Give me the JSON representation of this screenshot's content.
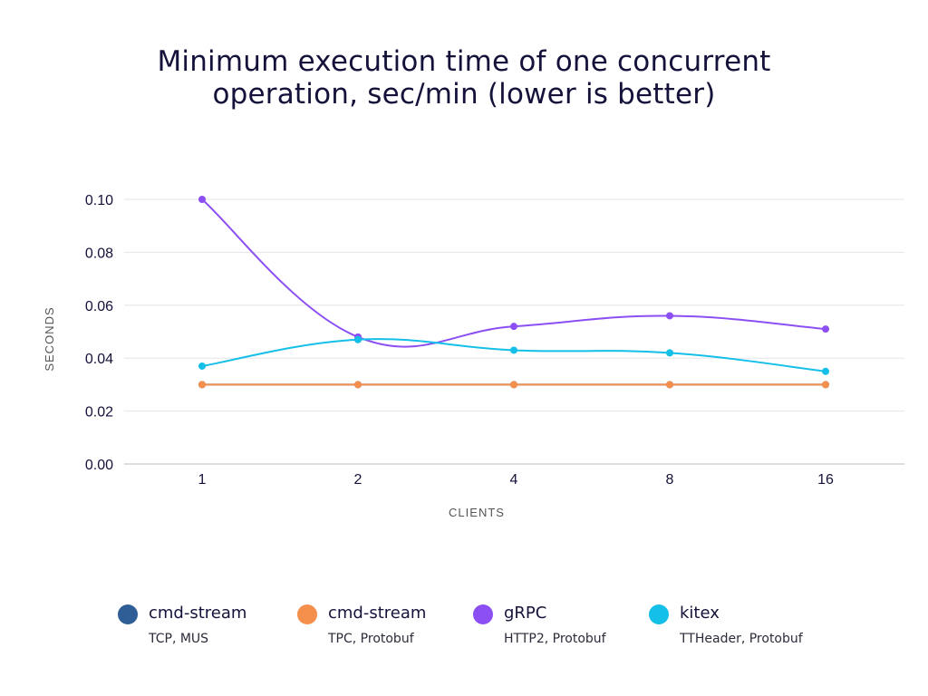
{
  "chart_data": {
    "type": "line",
    "title_lines": [
      "Minimum execution time of one concurrent",
      "operation, sec/min (lower is better)"
    ],
    "xlabel": "CLIENTS",
    "ylabel": "SECONDS",
    "categories": [
      "1",
      "2",
      "4",
      "8",
      "16"
    ],
    "yticks": [
      "0.00",
      "0.02",
      "0.04",
      "0.06",
      "0.08",
      "0.10"
    ],
    "ylim": [
      0,
      0.1
    ],
    "grid": true,
    "legend_position": "bottom",
    "series": [
      {
        "name": "cmd-stream",
        "subtitle": "TCP, MUS",
        "color": "#2f5d96",
        "values": [
          0.03,
          0.03,
          0.03,
          0.03,
          0.03
        ]
      },
      {
        "name": "cmd-stream",
        "subtitle": "TPC, Protobuf",
        "color": "#f5904c",
        "values": [
          0.03,
          0.03,
          0.03,
          0.03,
          0.03
        ]
      },
      {
        "name": "gRPC",
        "subtitle": "HTTP2, Protobuf",
        "color": "#8c4ff4",
        "values": [
          0.1,
          0.048,
          0.052,
          0.056,
          0.051
        ]
      },
      {
        "name": "kitex",
        "subtitle": "TTHeader, Protobuf",
        "color": "#14bfe8",
        "values": [
          0.037,
          0.047,
          0.043,
          0.042,
          0.035
        ]
      }
    ]
  }
}
